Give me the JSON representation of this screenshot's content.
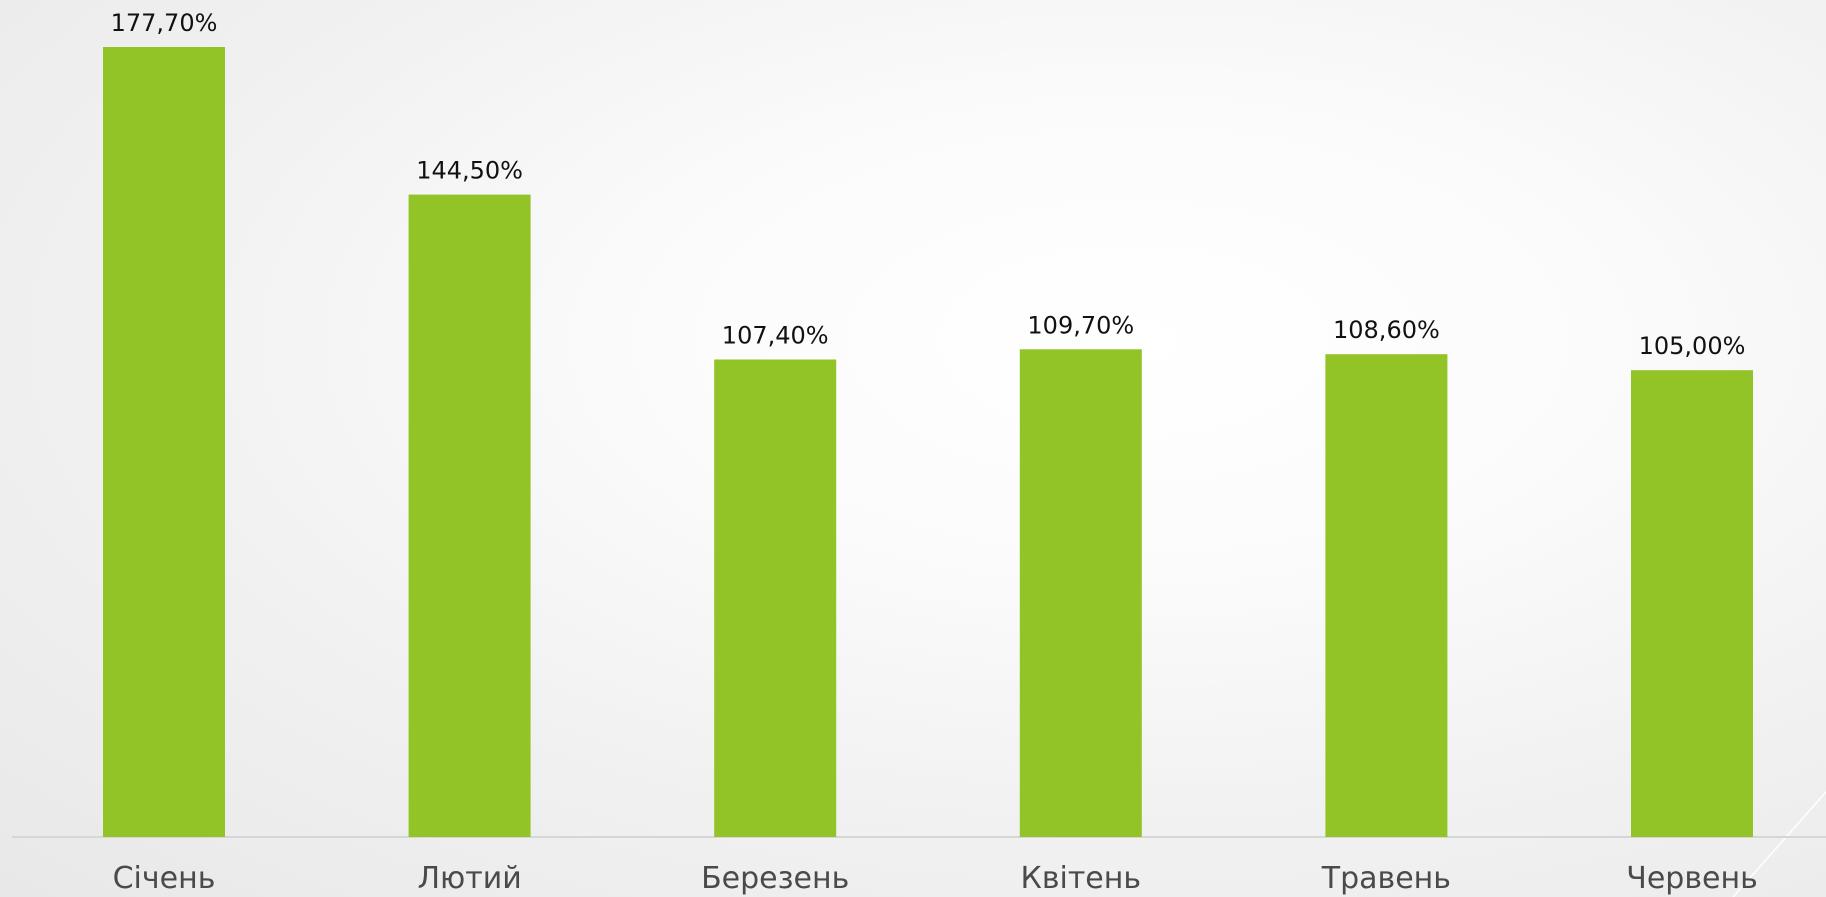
{
  "chart_data": {
    "type": "bar",
    "categories": [
      "Січень",
      "Лютий",
      "Березень",
      "Квітень",
      "Травень",
      "Червень"
    ],
    "values": [
      177.7,
      144.5,
      107.4,
      109.7,
      108.6,
      105.0
    ],
    "value_labels": [
      "177,70%",
      "144,50%",
      "107,40%",
      "109,70%",
      "108,60%",
      "105,00%"
    ],
    "ylim": [
      0,
      177.7
    ],
    "grid": false,
    "legend": "none"
  },
  "colors": {
    "bar": "#92c327",
    "axis": "#d6d6d6",
    "decor_line": "#ffffff"
  }
}
